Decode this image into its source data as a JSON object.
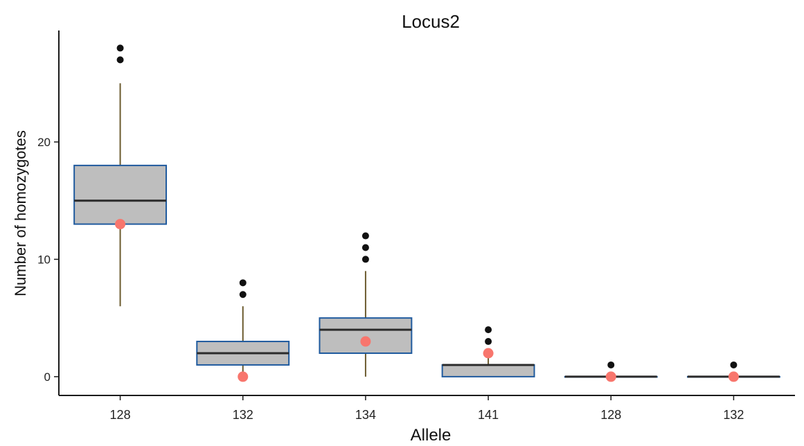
{
  "chart_data": {
    "type": "boxplot",
    "title": "Locus2",
    "xlabel": "Allele",
    "ylabel": "Number of homozygotes",
    "ylim": [
      -1.6,
      29.5
    ],
    "yticks": [
      0,
      10,
      20
    ],
    "grid": false,
    "categories": [
      "128",
      "132",
      "134",
      "141",
      "128",
      "132"
    ],
    "boxes": [
      {
        "q1": 13,
        "median": 15,
        "q3": 18,
        "whisker_low": 6,
        "whisker_high": 25,
        "outliers": [
          27,
          28
        ],
        "observed": 13
      },
      {
        "q1": 1,
        "median": 2,
        "q3": 3,
        "whisker_low": 0,
        "whisker_high": 6,
        "outliers": [
          7,
          8
        ],
        "observed": 0
      },
      {
        "q1": 2,
        "median": 4,
        "q3": 5,
        "whisker_low": 0,
        "whisker_high": 9,
        "outliers": [
          10,
          11,
          12
        ],
        "observed": 3
      },
      {
        "q1": 0,
        "median": 1,
        "q3": 1,
        "whisker_low": 0,
        "whisker_high": 2,
        "outliers": [
          3,
          4
        ],
        "observed": 2
      },
      {
        "q1": 0,
        "median": 0,
        "q3": 0,
        "whisker_low": 0,
        "whisker_high": 0,
        "outliers": [
          1
        ],
        "observed": 0
      },
      {
        "q1": 0,
        "median": 0,
        "q3": 0,
        "whisker_low": 0,
        "whisker_high": 0,
        "outliers": [
          1
        ],
        "observed": 0
      }
    ],
    "colors": {
      "box_fill": "#bebebe",
      "box_border": "#1f5a9e",
      "whisker": "#6b5a2e",
      "median": "#2b2b2b",
      "outlier": "#111111",
      "observed": "#f8766d",
      "axis": "#1a1a1a"
    }
  }
}
